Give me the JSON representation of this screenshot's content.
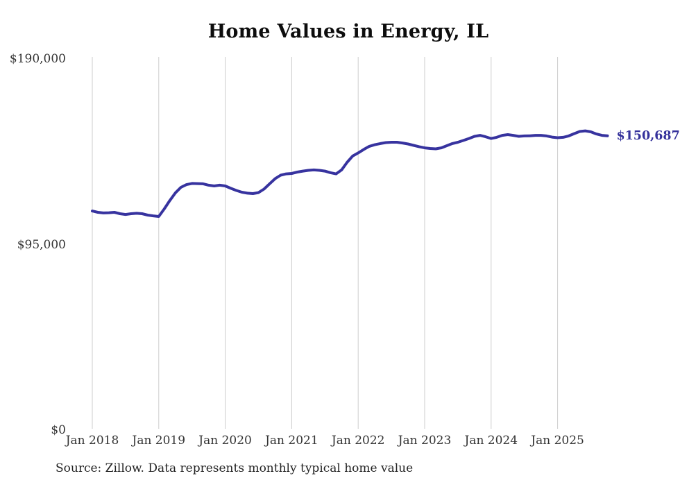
{
  "page": {
    "title": "Home Values in Energy, IL",
    "source_note": "Source: Zillow. Data represents monthly typical home value",
    "latest_value_label": "$150,687"
  },
  "colors": {
    "background": "#ffffff",
    "line": "#37339f",
    "grid": "#cccccc",
    "title_text": "#0d0d0d",
    "tick_text": "#333333",
    "end_label_text": "#34319b",
    "source_text": "#222222"
  },
  "chart_data": {
    "type": "line",
    "title": "Home Values in Energy, IL",
    "xlabel": "",
    "ylabel": "",
    "ylim": [
      0,
      190000
    ],
    "grid": "vertical-only",
    "legend_position": "none",
    "y_ticks": [
      {
        "label": "$0",
        "value": 0
      },
      {
        "label": "$95,000",
        "value": 95000
      },
      {
        "label": "$190,000",
        "value": 190000
      }
    ],
    "x_tick_labels": [
      "Jan 2018",
      "Jan 2019",
      "Jan 2020",
      "Jan 2021",
      "Jan 2022",
      "Jan 2023",
      "Jan 2024",
      "Jan 2025"
    ],
    "x_tick_interval_months": 12,
    "annotation": {
      "text": "$150,687",
      "value": 150687,
      "position": "line-end"
    },
    "series": [
      {
        "name": "Monthly typical home value",
        "x": [
          "2018-01",
          "2018-02",
          "2018-03",
          "2018-04",
          "2018-05",
          "2018-06",
          "2018-07",
          "2018-08",
          "2018-09",
          "2018-10",
          "2018-11",
          "2018-12",
          "2019-01",
          "2019-02",
          "2019-03",
          "2019-04",
          "2019-05",
          "2019-06",
          "2019-07",
          "2019-08",
          "2019-09",
          "2019-10",
          "2019-11",
          "2019-12",
          "2020-01",
          "2020-02",
          "2020-03",
          "2020-04",
          "2020-05",
          "2020-06",
          "2020-07",
          "2020-08",
          "2020-09",
          "2020-10",
          "2020-11",
          "2020-12",
          "2021-01",
          "2021-02",
          "2021-03",
          "2021-04",
          "2021-05",
          "2021-06",
          "2021-07",
          "2021-08",
          "2021-09",
          "2021-10",
          "2021-11",
          "2021-12",
          "2022-01",
          "2022-02",
          "2022-03",
          "2022-04",
          "2022-05",
          "2022-06",
          "2022-07",
          "2022-08",
          "2022-09",
          "2022-10",
          "2022-11",
          "2022-12",
          "2023-01",
          "2023-02",
          "2023-03",
          "2023-04",
          "2023-05",
          "2023-06",
          "2023-07",
          "2023-08",
          "2023-09",
          "2023-10",
          "2023-11",
          "2023-12",
          "2024-01",
          "2024-02",
          "2024-03",
          "2024-04",
          "2024-05",
          "2024-06",
          "2024-07",
          "2024-08",
          "2024-09",
          "2024-10",
          "2024-11",
          "2024-12",
          "2025-01",
          "2025-02",
          "2025-03",
          "2025-04",
          "2025-05",
          "2025-06",
          "2025-07",
          "2025-08",
          "2025-09",
          "2025-10"
        ],
        "values": [
          112200,
          111500,
          111200,
          111300,
          111500,
          110800,
          110400,
          110800,
          111000,
          110800,
          110100,
          109700,
          109400,
          113300,
          117600,
          121500,
          124300,
          125700,
          126300,
          126200,
          126100,
          125400,
          125000,
          125400,
          125000,
          123800,
          122700,
          121800,
          121300,
          121100,
          121600,
          123400,
          126100,
          128700,
          130500,
          131200,
          131400,
          132100,
          132600,
          133000,
          133200,
          133000,
          132600,
          131800,
          131200,
          133200,
          137100,
          140300,
          141900,
          143700,
          145300,
          146100,
          146700,
          147200,
          147400,
          147400,
          147000,
          146500,
          145800,
          145100,
          144500,
          144200,
          144000,
          144500,
          145600,
          146700,
          147400,
          148300,
          149300,
          150400,
          150900,
          150200,
          149300,
          149900,
          150900,
          151300,
          150900,
          150400,
          150600,
          150700,
          150900,
          150900,
          150600,
          150000,
          149700,
          149900,
          150600,
          151800,
          152900,
          153200,
          152700,
          151600,
          150900,
          150687
        ]
      }
    ]
  }
}
